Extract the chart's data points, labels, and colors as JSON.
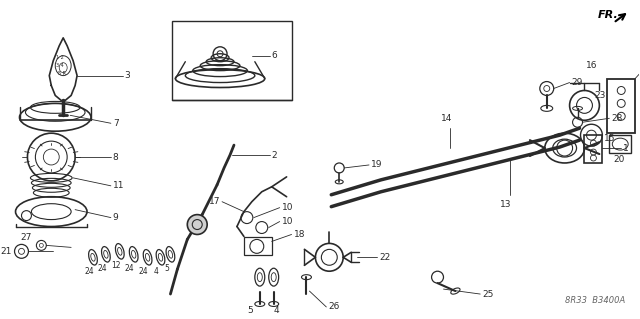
{
  "background_color": "#ffffff",
  "line_color": "#2a2a2a",
  "fig_width": 6.4,
  "fig_height": 3.19,
  "dpi": 100,
  "font_size": 6.5,
  "text_label": "8R33  B3400A",
  "fr_label": "FR."
}
